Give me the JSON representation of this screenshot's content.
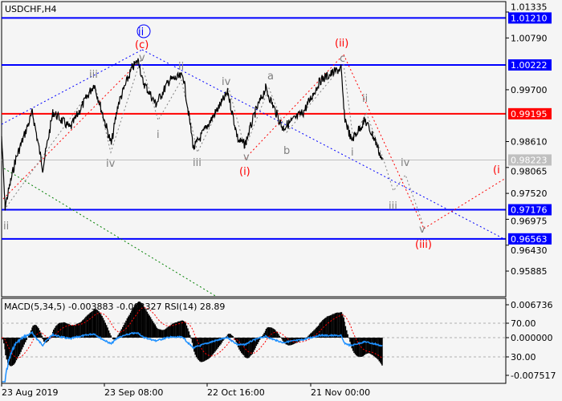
{
  "title": "USDCHF,H4",
  "chart_data": {
    "type": "line",
    "symbol": "USDCHF",
    "timeframe": "H4",
    "price_axis": {
      "ylim": [
        0.9555,
        1.014
      ],
      "ticks": [
        "1.01335",
        "1.00790",
        "0.99700",
        "0.98610",
        "0.98065",
        "0.97520",
        "0.96975",
        "0.96430",
        "0.95885"
      ]
    },
    "time_axis": {
      "ticks": [
        "23 Aug 2019",
        "23 Sep 08:00",
        "22 Oct 16:00",
        "21 Nov 00:00"
      ]
    },
    "price_series": [
      [
        "2019-08-23",
        0.9872
      ],
      [
        "2019-08-24",
        0.97235
      ],
      [
        "2019-08-27",
        0.98214
      ],
      [
        "2019-09-01",
        0.99226
      ],
      [
        "2019-09-04",
        0.98045
      ],
      [
        "2019-09-07",
        0.99226
      ],
      [
        "2019-09-12",
        0.98889
      ],
      [
        "2019-09-17",
        0.99563
      ],
      [
        "2019-09-19",
        0.99817
      ],
      [
        "2019-09-24",
        0.98551
      ],
      [
        "2019-09-26",
        0.99395
      ],
      [
        "2019-09-30",
        1.00154
      ],
      [
        "2019-10-02",
        1.00323
      ],
      [
        "2019-10-03",
        0.99901
      ],
      [
        "2019-10-07",
        0.99395
      ],
      [
        "2019-10-11",
        0.99901
      ],
      [
        "2019-10-15",
        0.99985
      ],
      [
        "2019-10-18",
        0.98467
      ],
      [
        "2019-10-23",
        0.99057
      ],
      [
        "2019-10-28",
        0.99648
      ],
      [
        "2019-10-31",
        0.98635
      ],
      [
        "2019-11-02",
        0.98551
      ],
      [
        "2019-11-05",
        0.99226
      ],
      [
        "2019-11-08",
        0.99732
      ],
      [
        "2019-11-13",
        0.98889
      ],
      [
        "2019-11-19",
        0.99226
      ],
      [
        "2019-11-24",
        0.99901
      ],
      [
        "2019-11-30",
        1.00154
      ],
      [
        "2019-12-01",
        0.99142
      ],
      [
        "2019-12-03",
        0.98635
      ],
      [
        "2019-12-07",
        0.99057
      ],
      [
        "2019-12-10",
        0.98635
      ],
      [
        "2019-12-12",
        0.98223
      ]
    ],
    "levels": [
      {
        "price": "1.01210",
        "color": "#0000ff"
      },
      {
        "price": "1.00222",
        "color": "#0000ff"
      },
      {
        "price": "0.99195",
        "color": "#ff0000"
      },
      {
        "price": "0.98223",
        "color": "#c0c0c0"
      },
      {
        "price": "0.97176",
        "color": "#0000ff"
      },
      {
        "price": "0.96563",
        "color": "#0000ff"
      }
    ],
    "wave_labels": {
      "circled_ii": "ii",
      "c_paren": "(c)",
      "v1": "v",
      "iii1": "iii",
      "ii1": "ii",
      "iv1": "iv",
      "iv0": "iv",
      "i1": "i",
      "iii2": "iii",
      "v2": "v",
      "i_paren": "(i)",
      "a": "a",
      "b": "b",
      "c": "c",
      "ii_paren": "(ii)",
      "ii2": "ii",
      "i2": "i",
      "iv2": "iv",
      "iii3": "iii",
      "v3": "v",
      "iii_paren": "(iii)",
      "i_paren_right": "(i",
      "ii_left": "ii"
    },
    "indicator": {
      "label": "MACD(5,34,5) -0.003883 -0.003327 RSI(14) 28.89",
      "ticks": [
        "0.006736",
        "70.00",
        "0.000000",
        "30.00",
        "-0.007517"
      ],
      "ylim": [
        -0.007517,
        0.006736
      ]
    },
    "colors": {
      "price": "#000000",
      "support_resistance": "#0000ff",
      "pivot": "#ff0000",
      "rsi": "#1e90ff",
      "signal": "#ff0000"
    }
  }
}
